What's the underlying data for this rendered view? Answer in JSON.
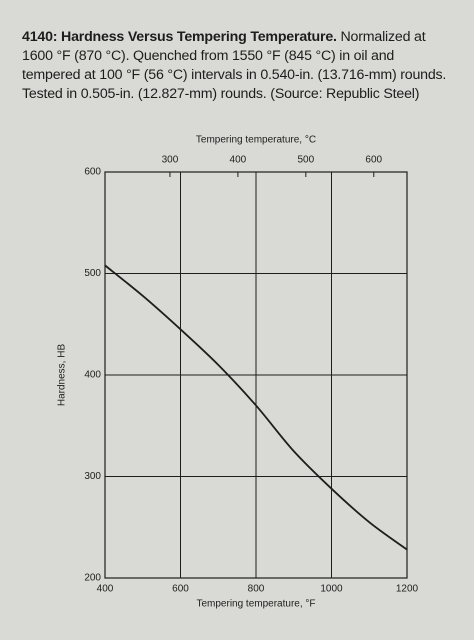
{
  "chart_data": {
    "type": "line",
    "title": "4140: Hardness Versus Tempering Temperature.",
    "subtitle": "Normalized at 1600 °F (870 °C). Quenched from 1550 °F (845 °C) in oil and tempered at 100 °F (56 °C) intervals in 0.540-in. (13.716-mm) rounds. Tested in 0.505-in. (12.827-mm) rounds. (Source: Republic Steel)",
    "x_label": "Tempering temperature, °F",
    "x2_label": "Tempering temperature, °C",
    "y_label": "Hardness, HB",
    "x": [
      400,
      500,
      600,
      700,
      800,
      900,
      1000,
      1100,
      1200
    ],
    "values": [
      508,
      478,
      445,
      410,
      370,
      325,
      288,
      255,
      228
    ],
    "color": "#1d1d1d",
    "xlim": [
      400,
      1200
    ],
    "xticks": [
      400,
      600,
      800,
      1000,
      1200
    ],
    "x2lim": [
      204.4,
      648.9
    ],
    "x2ticks": [
      300,
      400,
      500,
      600
    ],
    "ylim": [
      200,
      600
    ],
    "yticks": [
      200,
      300,
      400,
      500,
      600
    ],
    "grid": true
  }
}
